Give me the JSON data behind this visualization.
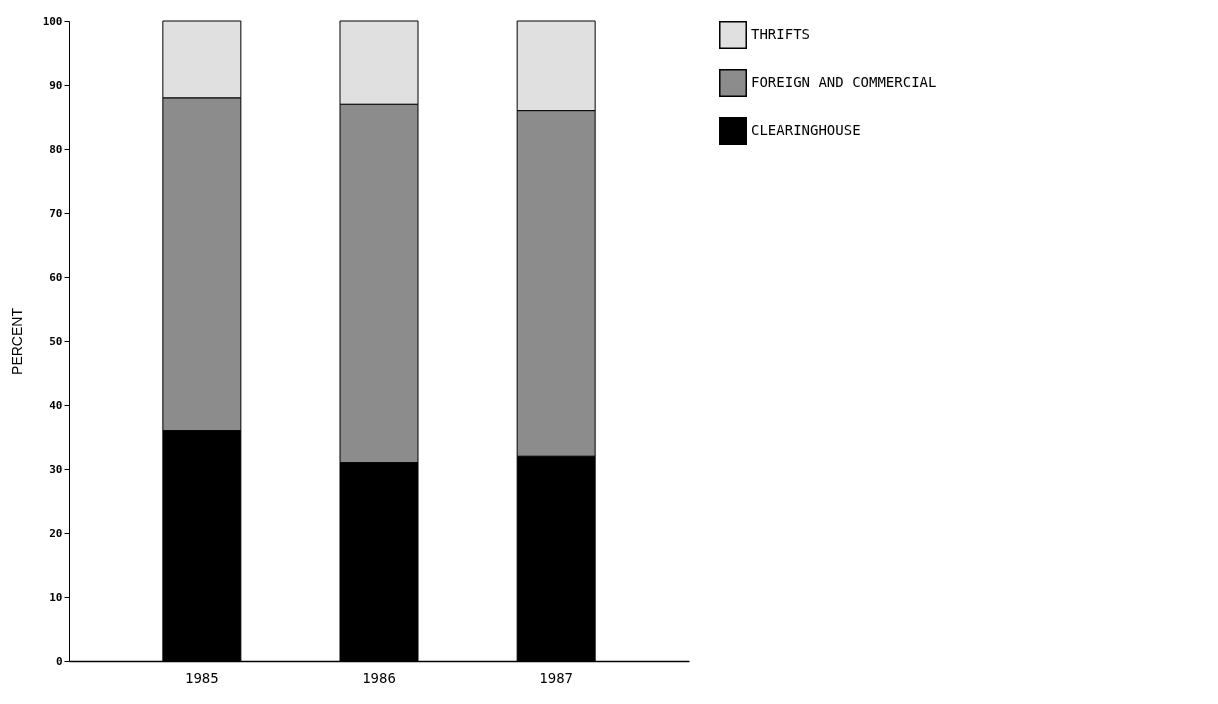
{
  "chart_data": {
    "type": "bar",
    "stacked": true,
    "ylabel": "PERCENT",
    "categories": [
      "1985",
      "1986",
      "1987"
    ],
    "series": [
      {
        "name": "CLEARINGHOUSE",
        "color": "#000000",
        "values": [
          36,
          31,
          32
        ]
      },
      {
        "name": "FOREIGN AND COMMERCIAL",
        "color": "#8c8c8c",
        "values": [
          52,
          56,
          54
        ]
      },
      {
        "name": "THRIFTS",
        "color": "#e0e0e0",
        "values": [
          12,
          13,
          14
        ]
      }
    ],
    "ylim": [
      0,
      100
    ],
    "yticks": [
      0,
      10,
      20,
      30,
      40,
      50,
      60,
      70,
      80,
      90,
      100
    ],
    "grid": false,
    "legend": "top right"
  }
}
